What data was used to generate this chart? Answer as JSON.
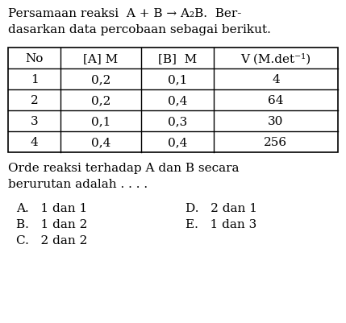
{
  "title_line1": "Persamaan reaksi  A + B → A₂B.  Ber-",
  "title_line2": "dasarkan data percobaan sebagai berikut.",
  "table_headers": [
    "No",
    "[A] M",
    "[B]  M",
    "V (M.det⁻¹)"
  ],
  "table_rows": [
    [
      "1",
      "0,2",
      "0,1",
      "4"
    ],
    [
      "2",
      "0,2",
      "0,4",
      "64"
    ],
    [
      "3",
      "0,1",
      "0,3",
      "30"
    ],
    [
      "4",
      "0,4",
      "0,4",
      "256"
    ]
  ],
  "question_line1": "Orde reaksi terhadap A dan B secara",
  "question_line2": "berurutan adalah . . . .",
  "options_left": [
    "A.   1 dan 1",
    "B.   1 dan 2",
    "C.   2 dan 2"
  ],
  "options_right": [
    "D.   2 dan 1",
    "E.   1 dan 3"
  ],
  "bg_color": "#ffffff",
  "text_color": "#000000",
  "font_size": 11,
  "table_font_size": 11
}
